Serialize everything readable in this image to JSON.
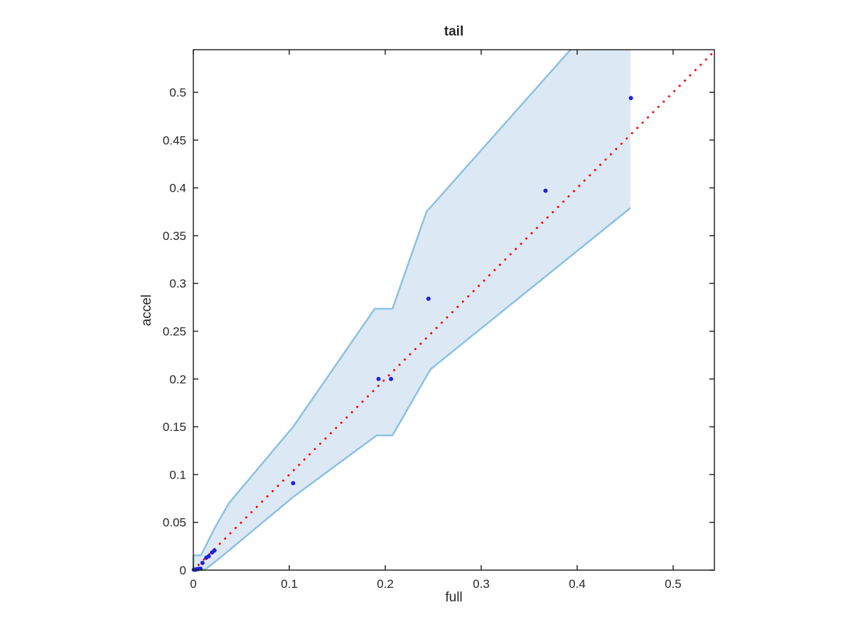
{
  "figure": {
    "background": "#ffffff",
    "axes_color": "#262626",
    "tick_label_color": "#262626"
  },
  "chart_data": {
    "type": "scatter",
    "title": "tail",
    "xlabel": "full",
    "ylabel": "accel",
    "xlim": [
      0,
      0.543
    ],
    "ylim": [
      0,
      0.5446
    ],
    "grid": false,
    "box": true,
    "xticks": [
      0,
      0.1,
      0.2,
      0.3,
      0.4,
      0.5
    ],
    "xtick_labels": [
      "0",
      "0.1",
      "0.2",
      "0.3",
      "0.4",
      "0.5"
    ],
    "yticks": [
      0,
      0.05,
      0.1,
      0.15,
      0.2,
      0.25,
      0.3,
      0.35,
      0.4,
      0.45,
      0.5
    ],
    "ytick_labels": [
      "0",
      "0.05",
      "0.1",
      "0.15",
      "0.2",
      "0.25",
      "0.3",
      "0.35",
      "0.4",
      "0.45",
      "0.5"
    ],
    "band": {
      "name": "confidence-band",
      "fill_color": "#dce9f4",
      "edge_color": "#8cc1e2",
      "edge_width": 2.5,
      "upper": [
        [
          0,
          0
        ],
        [
          0,
          0.0155
        ],
        [
          0.008,
          0.0155
        ],
        [
          0.0225,
          0.0445
        ],
        [
          0.037,
          0.07
        ],
        [
          0.104,
          0.15
        ],
        [
          0.189,
          0.2735
        ],
        [
          0.2075,
          0.2735
        ],
        [
          0.243,
          0.375
        ],
        [
          0.393,
          0.5446
        ]
      ],
      "lower": [
        [
          0,
          0
        ],
        [
          0.012,
          0.0005
        ],
        [
          0.028,
          0.013
        ],
        [
          0.104,
          0.0765
        ],
        [
          0.191,
          0.141
        ],
        [
          0.2075,
          0.141
        ],
        [
          0.247,
          0.21
        ],
        [
          0.4555,
          0.379
        ]
      ],
      "right_edge_top": [
        0.4555,
        0.5446
      ]
    },
    "identity_line": {
      "name": "identity-reference-line",
      "style": "dotted",
      "color": "#ff0000",
      "x": [
        0,
        0.543
      ],
      "y": [
        0,
        0.543
      ]
    },
    "scatter": {
      "name": "quantile-points",
      "color": "#2020dd",
      "marker": "dot",
      "marker_radius": 3,
      "points": [
        [
          0.0005,
          0.0005
        ],
        [
          0.0015,
          0.0005
        ],
        [
          0.0025,
          0.0005
        ],
        [
          0.0035,
          0.001
        ],
        [
          0.005,
          0.001
        ],
        [
          0.006,
          0.0015
        ],
        [
          0.0075,
          0.0015
        ],
        [
          0.0095,
          0.0075
        ],
        [
          0.0135,
          0.013
        ],
        [
          0.016,
          0.0145
        ],
        [
          0.0195,
          0.0185
        ],
        [
          0.022,
          0.0205
        ],
        [
          0.104,
          0.091
        ],
        [
          0.193,
          0.2
        ],
        [
          0.206,
          0.2
        ],
        [
          0.245,
          0.284
        ],
        [
          0.367,
          0.397
        ],
        [
          0.456,
          0.494
        ]
      ]
    }
  }
}
